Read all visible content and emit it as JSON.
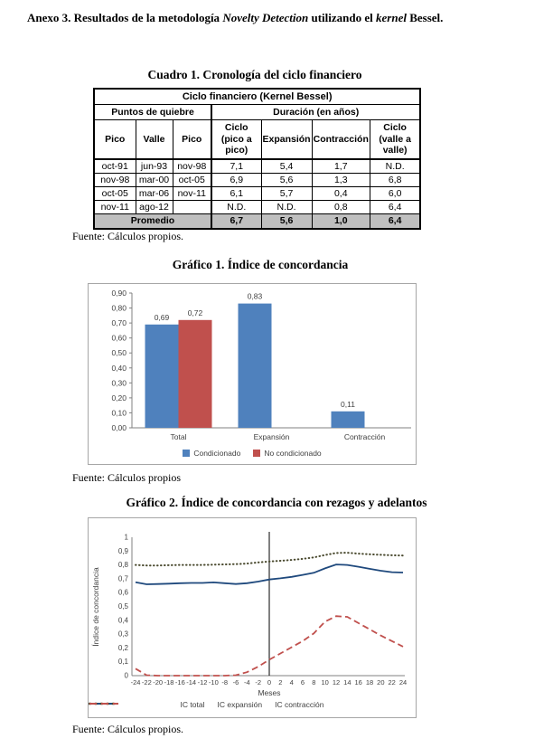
{
  "heading": {
    "part1": "Anexo 3. Resultados de la metodología ",
    "part2": "Novelty Detection",
    "part3": " utilizando el ",
    "part4": "kernel",
    "part5": " Bessel."
  },
  "table_section": {
    "caption": "Cuadro 1. Cronología del ciclo financiero",
    "source": "Fuente: Cálculos propios.",
    "table": {
      "title": "Ciclo financiero (Kernel Bessel)",
      "group_headers": [
        "Puntos de quiebre",
        "Duración (en años)"
      ],
      "col_headers": [
        "Pico",
        "Valle",
        "Pico",
        "Ciclo\n(pico a pico)",
        "Expansión",
        "Contracción",
        "Ciclo\n(valle a\nvalle)"
      ],
      "rows": [
        [
          "oct-91",
          "jun-93",
          "nov-98",
          "7,1",
          "5,4",
          "1,7",
          "N.D."
        ],
        [
          "nov-98",
          "mar-00",
          "oct-05",
          "6,9",
          "5,6",
          "1,3",
          "6,8"
        ],
        [
          "oct-05",
          "mar-06",
          "nov-11",
          "6,1",
          "5,7",
          "0,4",
          "6,0"
        ],
        [
          "nov-11",
          "ago-12",
          "",
          "N.D.",
          "N.D.",
          "0,8",
          "6,4"
        ]
      ],
      "summary": {
        "label": "Promedio",
        "values": [
          "6,7",
          "5,6",
          "1,0",
          "6,4"
        ]
      }
    }
  },
  "chart1_section": {
    "caption": "Gráfico 1. Índice de concordancia",
    "source": "Fuente: Cálculos propios"
  },
  "chart2_section": {
    "caption": "Gráfico 2. Índice de concordancia con rezagos y adelantos",
    "source": "Fuente: Cálculos propios."
  },
  "chart_data": [
    {
      "type": "bar",
      "title": "Gráfico 1. Índice de concordancia",
      "categories": [
        "Total",
        "Expansión",
        "Contracción"
      ],
      "series": [
        {
          "name": "Condicionado",
          "color": "#4F81BD",
          "values": [
            0.69,
            0.83,
            0.11
          ],
          "labels": [
            "0,69",
            "0,83",
            "0,11"
          ]
        },
        {
          "name": "No condicionado",
          "color": "#C0504D",
          "values": [
            0.72,
            null,
            null
          ],
          "labels": [
            "0,72",
            null,
            null
          ]
        }
      ],
      "ylim": [
        0,
        0.9
      ],
      "ytick_step": 0.1,
      "ytick_labels": [
        "0,00",
        "0,10",
        "0,20",
        "0,30",
        "0,40",
        "0,50",
        "0,60",
        "0,70",
        "0,80",
        "0,90"
      ],
      "grid": false,
      "legend_position": "bottom",
      "axis_color": "#808080",
      "text_color": "#404040"
    },
    {
      "type": "line",
      "title": "Gráfico 2. Índice de concordancia con rezagos y adelantos",
      "x": [
        -24,
        -22,
        -20,
        -18,
        -16,
        -14,
        -12,
        -10,
        -8,
        -6,
        -4,
        -2,
        0,
        2,
        4,
        6,
        8,
        10,
        12,
        14,
        16,
        18,
        20,
        22,
        24
      ],
      "xlabel": "Meses",
      "ylabel": "Índice de concordancia",
      "ylim": [
        0,
        1
      ],
      "ytick_labels": [
        "0",
        "0,1",
        "0,2",
        "0,3",
        "0,4",
        "0,5",
        "0,6",
        "0,7",
        "0,8",
        "0,9",
        "1"
      ],
      "vline_x": 0,
      "grid": false,
      "legend_position": "bottom",
      "axis_color": "#808080",
      "text_color": "#404040",
      "series": [
        {
          "name": "IC total",
          "color": "#1F497D",
          "style": "solid",
          "values": [
            0.675,
            0.66,
            0.662,
            0.665,
            0.668,
            0.67,
            0.67,
            0.674,
            0.668,
            0.662,
            0.668,
            0.68,
            0.695,
            0.703,
            0.714,
            0.728,
            0.743,
            0.775,
            0.803,
            0.8,
            0.787,
            0.772,
            0.758,
            0.748,
            0.745
          ]
        },
        {
          "name": "IC expansión",
          "color": "#4A4A2F",
          "style": "dotted",
          "values": [
            0.8,
            0.796,
            0.796,
            0.798,
            0.8,
            0.8,
            0.8,
            0.802,
            0.804,
            0.806,
            0.81,
            0.818,
            0.825,
            0.83,
            0.836,
            0.844,
            0.854,
            0.872,
            0.886,
            0.888,
            0.882,
            0.877,
            0.873,
            0.87,
            0.868
          ]
        },
        {
          "name": "IC contracción",
          "color": "#C0504D",
          "style": "dashed",
          "values": [
            0.05,
            0.003,
            0,
            0,
            0,
            0,
            0,
            0,
            0,
            0.003,
            0.025,
            0.065,
            0.115,
            0.16,
            0.205,
            0.25,
            0.305,
            0.39,
            0.43,
            0.425,
            0.38,
            0.335,
            0.29,
            0.25,
            0.21
          ]
        }
      ]
    }
  ]
}
